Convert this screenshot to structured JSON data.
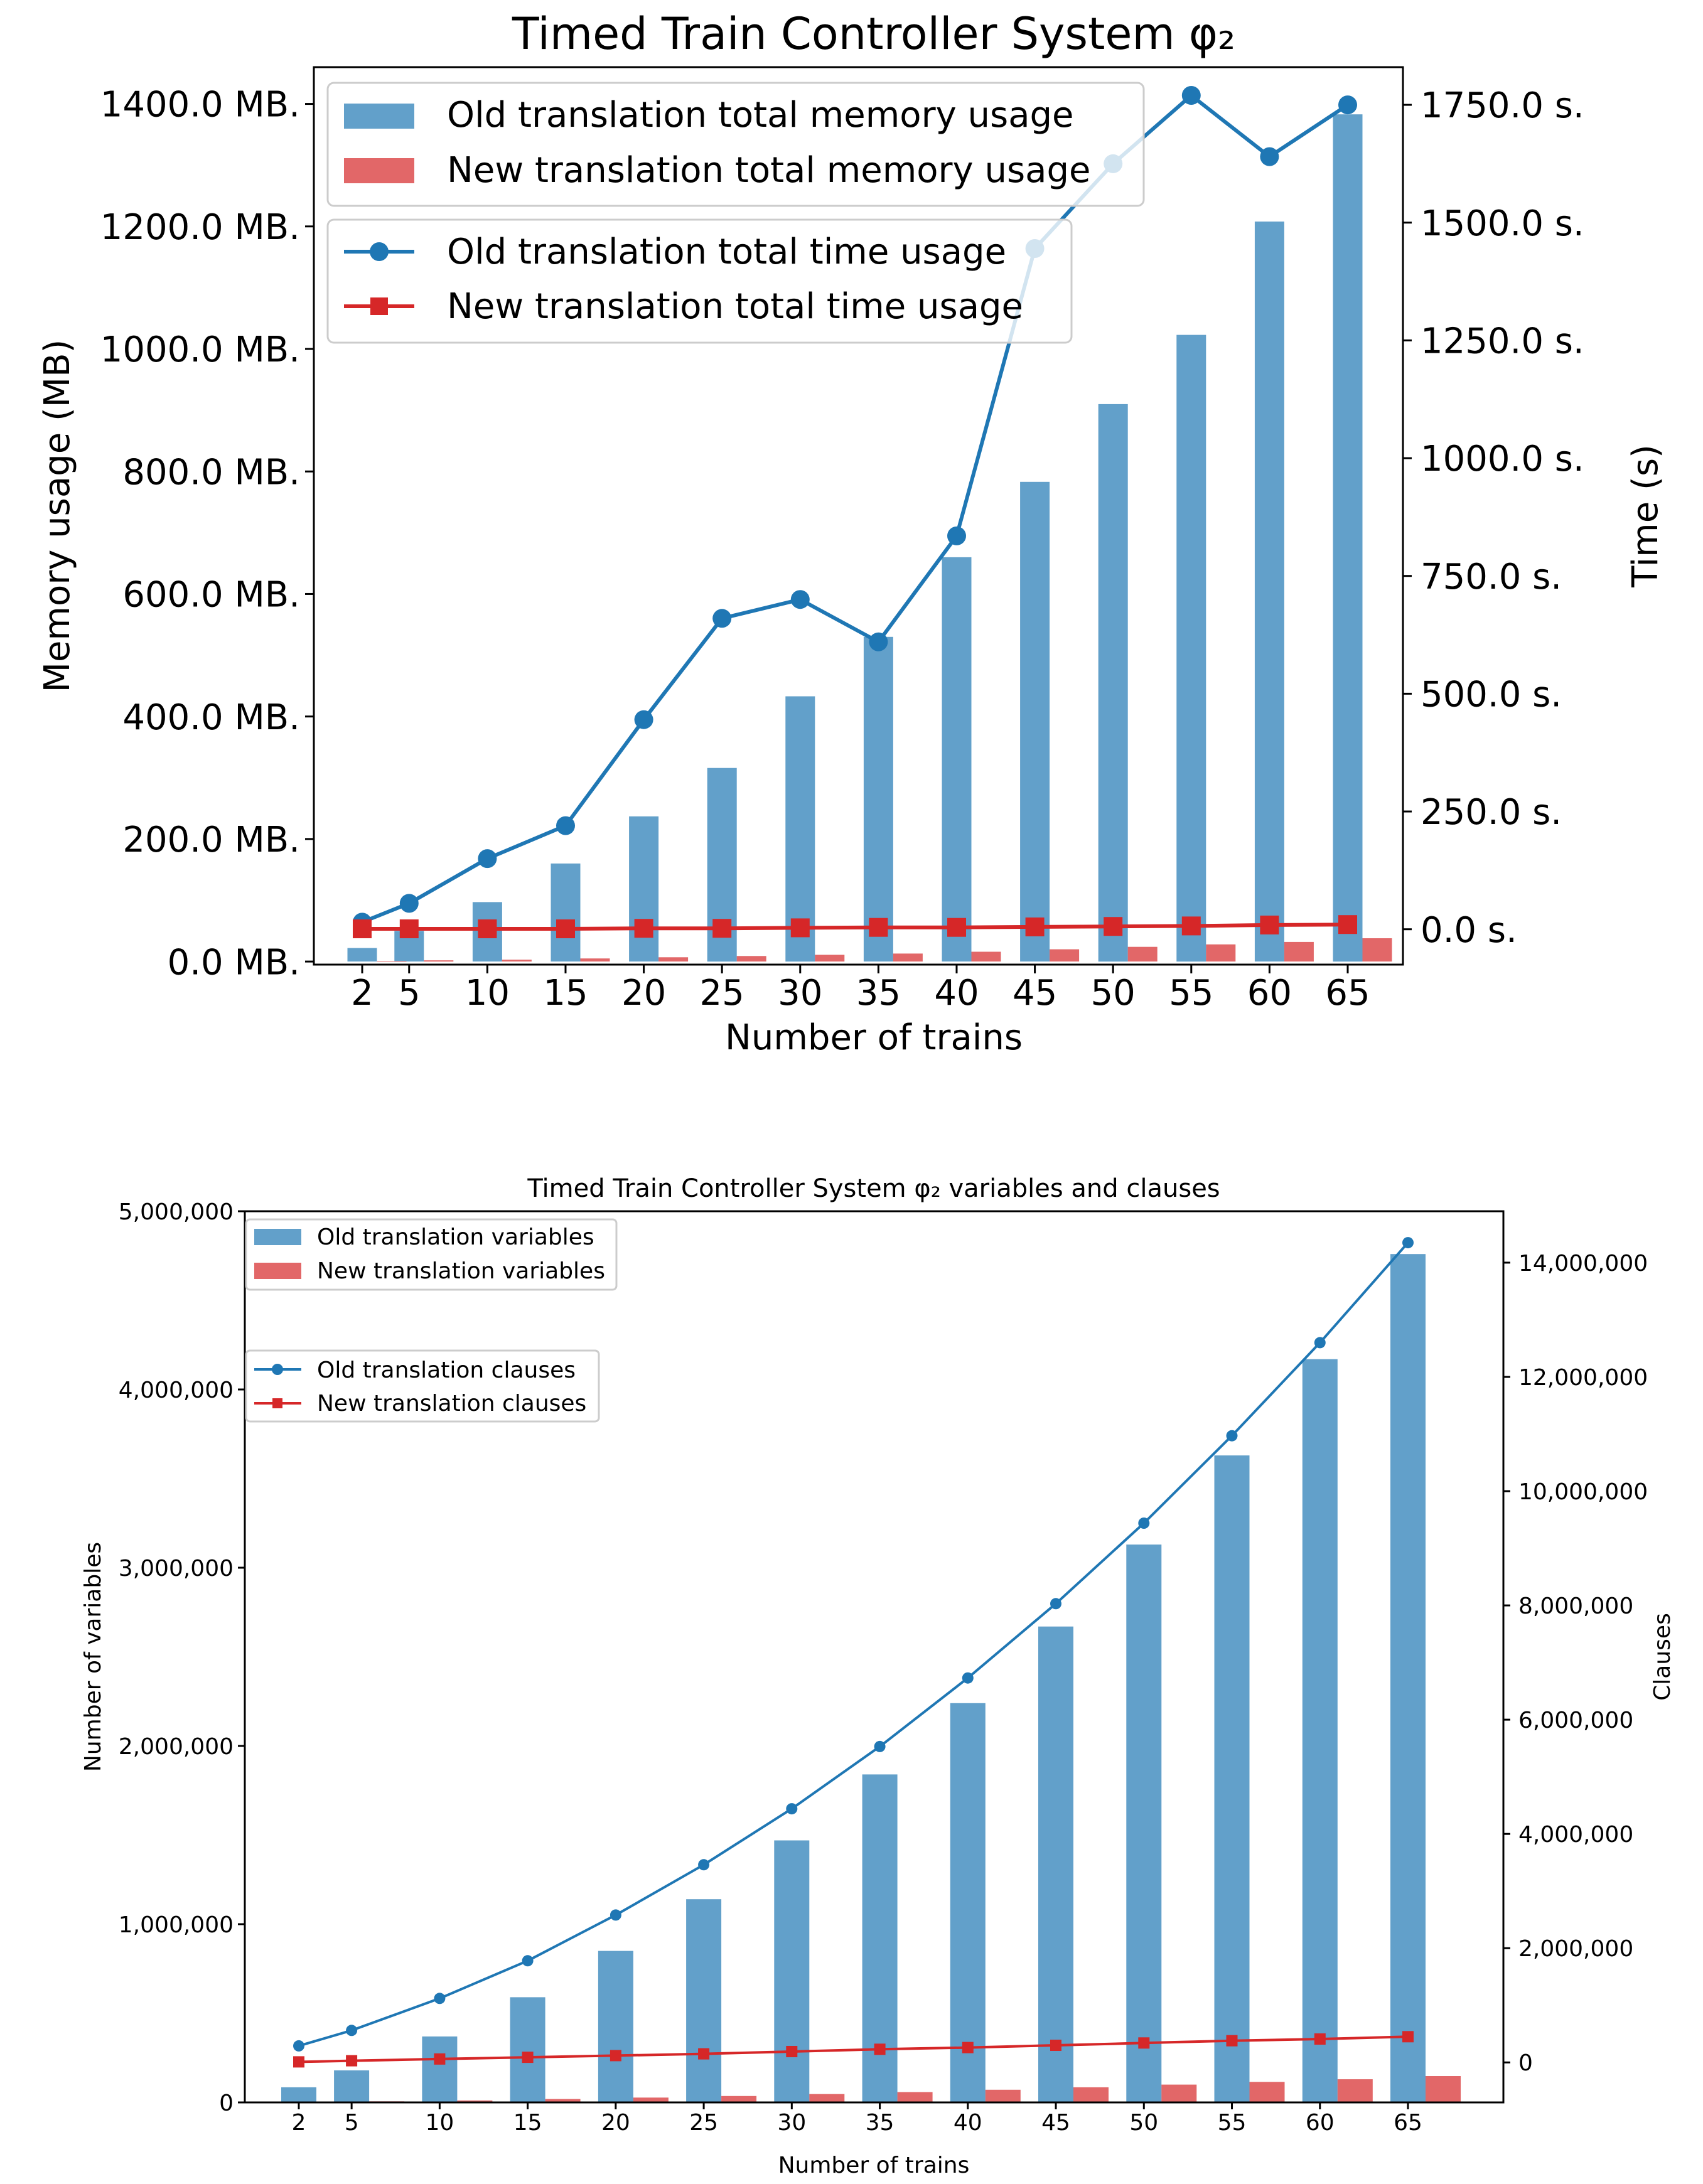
{
  "chart_data": [
    {
      "type": "bar",
      "title": "Timed Train Controller System φ₂",
      "xlabel": "Number of trains",
      "ylabel": "Memory usage (MB)",
      "y2label": "Time (s)",
      "x": [
        2,
        5,
        10,
        15,
        20,
        25,
        30,
        35,
        40,
        45,
        50,
        55,
        60,
        65
      ],
      "xtick_labels": [
        "2",
        "5",
        "10",
        "15",
        "20",
        "25",
        "30",
        "35",
        "40",
        "45",
        "50",
        "55",
        "60",
        "65"
      ],
      "ylim": [
        -5,
        1460
      ],
      "y_ticks": [
        0,
        200,
        400,
        600,
        800,
        1000,
        1200,
        1400
      ],
      "y_tick_labels": [
        "0.0 MB.",
        "200.0 MB.",
        "400.0 MB.",
        "600.0 MB.",
        "800.0 MB.",
        "1000.0 MB.",
        "1200.0 MB.",
        "1400.0 MB."
      ],
      "y2lim": [
        -75,
        1830
      ],
      "y2_ticks": [
        0,
        250,
        500,
        750,
        1000,
        1250,
        1500,
        1750
      ],
      "y2_tick_labels": [
        "0.0 s.",
        "250.0 s.",
        "500.0 s.",
        "750.0 s.",
        "1000.0 s.",
        "1250.0 s.",
        "1500.0 s.",
        "1750.0 s."
      ],
      "bar_series": [
        {
          "name": "Old translation total memory usage",
          "color": "#1f77b4",
          "values": [
            22,
            50,
            97,
            160,
            237,
            316,
            433,
            530,
            660,
            783,
            910,
            1023,
            1208,
            1383
          ]
        },
        {
          "name": "New translation total memory usage",
          "color": "#d62728",
          "values": [
            1,
            2,
            3,
            5,
            7,
            9,
            11,
            13,
            16,
            20,
            24,
            28,
            32,
            38
          ]
        }
      ],
      "line_series": [
        {
          "name": "Old translation total time usage",
          "color": "#1f77b4",
          "marker": "circle",
          "values": [
            15,
            55,
            150,
            220,
            445,
            660,
            700,
            610,
            835,
            1445,
            1625,
            1770,
            1640,
            1750
          ]
        },
        {
          "name": "New translation total time usage",
          "color": "#d62728",
          "marker": "square",
          "values": [
            1,
            1,
            1,
            1,
            2,
            2,
            3,
            4,
            4,
            5,
            6,
            7,
            9,
            10
          ]
        }
      ],
      "legend": [
        "top-left",
        "upper-left"
      ]
    },
    {
      "type": "bar",
      "title": "Timed Train Controller System φ₂ variables and clauses",
      "xlabel": "Number of trains",
      "ylabel": "Number of variables",
      "y2label": "Clauses",
      "x": [
        2,
        5,
        10,
        15,
        20,
        25,
        30,
        35,
        40,
        45,
        50,
        55,
        60,
        65
      ],
      "xtick_labels": [
        "2",
        "5",
        "10",
        "15",
        "20",
        "25",
        "30",
        "35",
        "40",
        "45",
        "50",
        "55",
        "60",
        "65"
      ],
      "ylim": [
        0,
        5000000
      ],
      "y_ticks": [
        0,
        1000000,
        2000000,
        3000000,
        4000000,
        5000000
      ],
      "y_tick_labels": [
        "0",
        "1,000,000",
        "2,000,000",
        "3,000,000",
        "4,000,000",
        "5,000,000"
      ],
      "y2lim": [
        -700000,
        14900000
      ],
      "y2_ticks": [
        0,
        2000000,
        4000000,
        6000000,
        8000000,
        10000000,
        12000000,
        14000000
      ],
      "y2_tick_labels": [
        "0",
        "2,000,000",
        "4,000,000",
        "6,000,000",
        "8,000,000",
        "10,000,000",
        "12,000,000",
        "14,000,000"
      ],
      "bar_series": [
        {
          "name": "Old translation variables",
          "color": "#1f77b4",
          "values": [
            85000,
            180000,
            370000,
            590000,
            850000,
            1140000,
            1470000,
            1840000,
            2240000,
            2670000,
            3130000,
            3630000,
            4170000,
            4760000
          ]
        },
        {
          "name": "New translation variables",
          "color": "#d62728",
          "values": [
            3000,
            6000,
            11000,
            19000,
            27000,
            36000,
            47000,
            58000,
            71000,
            85000,
            100000,
            115000,
            130000,
            148000
          ]
        }
      ],
      "line_series": [
        {
          "name": "Old translation clauses",
          "color": "#1f77b4",
          "marker": "circle",
          "values": [
            290000,
            560000,
            1120000,
            1780000,
            2580000,
            3460000,
            4440000,
            5530000,
            6730000,
            8030000,
            9440000,
            10970000,
            12600000,
            14350000
          ]
        },
        {
          "name": "New translation clauses",
          "color": "#d62728",
          "marker": "square",
          "values": [
            10000,
            30000,
            60000,
            90000,
            120000,
            150000,
            190000,
            230000,
            260000,
            300000,
            340000,
            380000,
            410000,
            450000
          ]
        }
      ],
      "legend": [
        "top-left",
        "upper-left"
      ]
    }
  ]
}
